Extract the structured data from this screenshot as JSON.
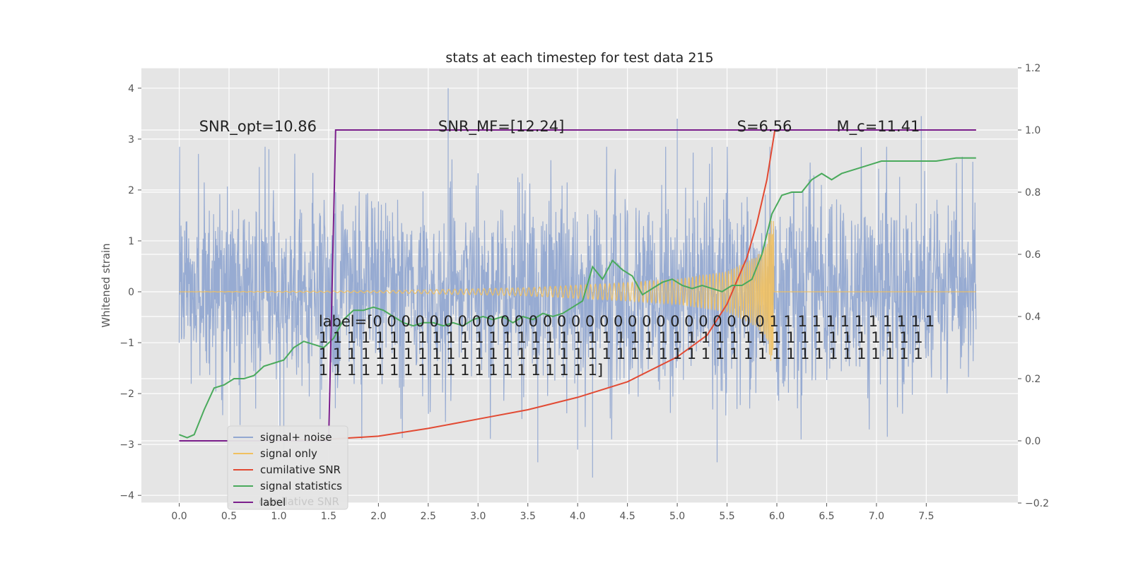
{
  "chart_data": {
    "type": "line",
    "title": "stats at each timestep for test data 215",
    "ylabel": "Whitened strain",
    "y2label": "",
    "xlim": [
      -0.38,
      8.42
    ],
    "ylim": [
      -4.15,
      4.4
    ],
    "y2lim": [
      -0.2,
      1.2
    ],
    "x_ticks": [
      0.0,
      0.5,
      1.0,
      1.5,
      2.0,
      2.5,
      3.0,
      3.5,
      4.0,
      4.5,
      5.0,
      5.5,
      6.0,
      6.5,
      7.0,
      7.5
    ],
    "x_tick_labels": [
      "0.0",
      "0.5",
      "1.0",
      "1.5",
      "2.0",
      "2.5",
      "3.0",
      "3.5",
      "4.0",
      "4.5",
      "5.0",
      "5.5",
      "6.0",
      "6.5",
      "7.0",
      "7.5"
    ],
    "y_ticks": [
      4,
      3,
      2,
      1,
      0,
      -1,
      -2,
      -3,
      -4
    ],
    "y_tick_labels": [
      "4",
      "3",
      "2",
      "1",
      "0",
      "−1",
      "−2",
      "−3",
      "−4"
    ],
    "y2_ticks": [
      1.2,
      1.0,
      0.8,
      0.6,
      0.4,
      0.2,
      0.0,
      -0.2
    ],
    "y2_tick_labels": [
      "1.2",
      "1.0",
      "0.8",
      "0.6",
      "0.4",
      "0.2",
      "0.0",
      "−0.2"
    ],
    "grid": true,
    "legend_position": "lower-left",
    "series": [
      {
        "name": "signal+ noise",
        "color": "#92a8d1",
        "axis": "left",
        "kind": "noise",
        "x_range": [
          0.0,
          8.0
        ],
        "typical_amplitude": 1.0,
        "peaks": [
          {
            "x": 2.7,
            "y": 4.0
          },
          {
            "x": 5.0,
            "y": 3.4
          },
          {
            "x": 7.45,
            "y": 3.45
          },
          {
            "x": 4.15,
            "y": -3.65
          },
          {
            "x": 3.6,
            "y": -3.35
          },
          {
            "x": 5.4,
            "y": -3.35
          },
          {
            "x": 4.0,
            "y": -3.1
          },
          {
            "x": 0.9,
            "y": 2.8
          },
          {
            "x": 1.05,
            "y": -3.2
          }
        ]
      },
      {
        "name": "signal only",
        "color": "#f0c060",
        "axis": "left",
        "kind": "chirp",
        "x_range": [
          0.0,
          8.0
        ],
        "merger_x": 5.97,
        "envelope": [
          [
            0.0,
            0.0
          ],
          [
            2.0,
            0.02
          ],
          [
            3.5,
            0.08
          ],
          [
            4.5,
            0.18
          ],
          [
            5.0,
            0.25
          ],
          [
            5.5,
            0.4
          ],
          [
            5.8,
            0.7
          ],
          [
            5.9,
            1.0
          ],
          [
            5.97,
            1.7
          ],
          [
            6.0,
            0.0
          ],
          [
            8.0,
            0.0
          ]
        ]
      },
      {
        "name": "cumilative SNR",
        "color": "#e24a33",
        "axis": "right",
        "x": [
          0.0,
          1.0,
          1.5,
          2.0,
          2.5,
          3.0,
          3.5,
          4.0,
          4.5,
          5.0,
          5.3,
          5.5,
          5.7,
          5.8,
          5.9,
          5.95,
          5.98,
          8.0
        ],
        "y": [
          0.0,
          0.0,
          0.005,
          0.015,
          0.04,
          0.07,
          0.1,
          0.14,
          0.19,
          0.27,
          0.34,
          0.44,
          0.59,
          0.7,
          0.84,
          0.94,
          1.0,
          1.0
        ]
      },
      {
        "name": "signal statistics",
        "color": "#4aaa5c",
        "axis": "right",
        "x": [
          0.0,
          0.08,
          0.15,
          0.25,
          0.35,
          0.45,
          0.55,
          0.65,
          0.75,
          0.85,
          0.95,
          1.05,
          1.15,
          1.25,
          1.35,
          1.45,
          1.55,
          1.65,
          1.75,
          1.85,
          1.95,
          2.05,
          2.15,
          2.25,
          2.35,
          2.45,
          2.55,
          2.65,
          2.75,
          2.85,
          2.95,
          3.05,
          3.15,
          3.25,
          3.35,
          3.45,
          3.55,
          3.65,
          3.75,
          3.85,
          3.95,
          4.05,
          4.15,
          4.25,
          4.35,
          4.45,
          4.55,
          4.65,
          4.75,
          4.85,
          4.95,
          5.05,
          5.15,
          5.25,
          5.35,
          5.45,
          5.55,
          5.65,
          5.75,
          5.85,
          5.95,
          6.05,
          6.15,
          6.25,
          6.35,
          6.45,
          6.55,
          6.65,
          6.75,
          6.85,
          6.95,
          7.05,
          7.2,
          7.4,
          7.6,
          7.8,
          8.0
        ],
        "y": [
          0.02,
          0.01,
          0.02,
          0.1,
          0.17,
          0.18,
          0.2,
          0.2,
          0.21,
          0.24,
          0.25,
          0.26,
          0.3,
          0.32,
          0.31,
          0.3,
          0.33,
          0.39,
          0.42,
          0.42,
          0.43,
          0.42,
          0.4,
          0.38,
          0.37,
          0.38,
          0.38,
          0.37,
          0.38,
          0.37,
          0.39,
          0.4,
          0.39,
          0.4,
          0.38,
          0.4,
          0.39,
          0.41,
          0.4,
          0.41,
          0.43,
          0.45,
          0.56,
          0.52,
          0.58,
          0.55,
          0.53,
          0.47,
          0.49,
          0.51,
          0.52,
          0.5,
          0.49,
          0.5,
          0.49,
          0.48,
          0.5,
          0.5,
          0.52,
          0.6,
          0.73,
          0.79,
          0.8,
          0.8,
          0.84,
          0.86,
          0.84,
          0.86,
          0.87,
          0.88,
          0.89,
          0.9,
          0.9,
          0.9,
          0.9,
          0.91,
          0.91
        ]
      },
      {
        "name": "label",
        "color": "#7b1f8c",
        "axis": "right",
        "x": [
          0.0,
          1.5,
          1.57,
          8.0
        ],
        "y": [
          0.0,
          0.0,
          1.0,
          1.0
        ]
      }
    ],
    "annotations": [
      {
        "text": "SNR_opt=10.86",
        "x": 0.2,
        "y": 3.15
      },
      {
        "text": "SNR_MF=[12.24]",
        "x": 2.6,
        "y": 3.15
      },
      {
        "text": "S=6.56",
        "x": 5.6,
        "y": 3.15
      },
      {
        "text": "M_c=11.41",
        "x": 6.6,
        "y": 3.15
      },
      {
        "text": "label=[0 0 0 0 0 0 0 0 0 0 0 0 0 0 0 0 0 0 0 0 0 0 0 0 0 0 0 0 1 1 1 1 1 1 1 1 1 1 1 1",
        "x": 1.4,
        "y": -0.68
      },
      {
        "text": " 1 1 1 1 1 1 1 1 1 1 1 1 1 1 1 1 1 1 1 1 1 1 1 1 1 1 1 1 1 1 1 1 1 1 1 1 1 1 1 1 1 1 1",
        "x": 1.4,
        "y": -1.0
      },
      {
        "text": " 1 1 1 1 1 1 1 1 1 1 1 1 1 1 1 1 1 1 1 1 1 1 1 1 1 1 1 1 1 1 1 1 1 1 1 1 1 1 1 1 1 1 1",
        "x": 1.4,
        "y": -1.32
      },
      {
        "text": " 1 1 1 1 1 1 1 1 1 1 1 1 1 1 1 1 1 1 1 1]",
        "x": 1.4,
        "y": -1.64
      }
    ],
    "legend_ghost_text": "cumilative SNR"
  }
}
